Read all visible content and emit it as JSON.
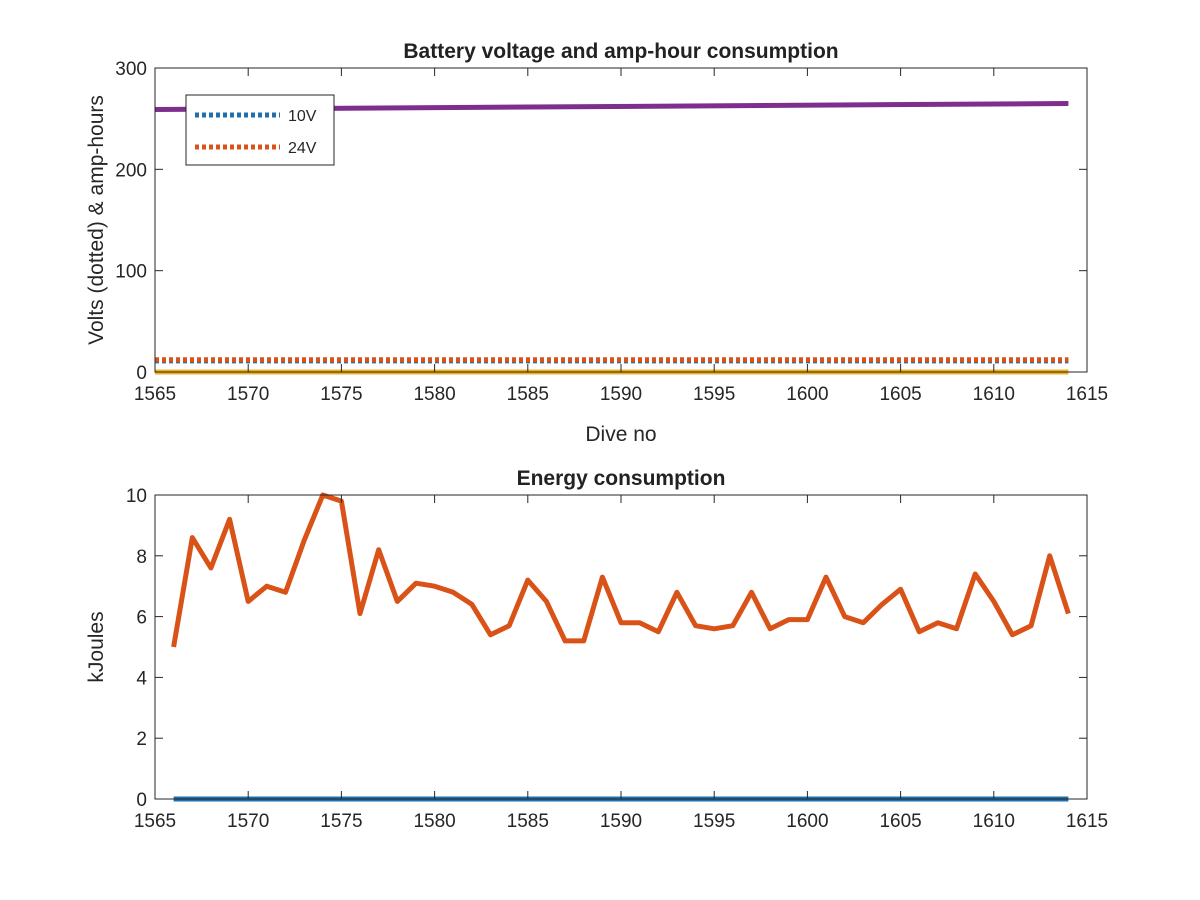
{
  "colors": {
    "blue": "#1f6fad",
    "orange": "#d95319",
    "yellow": "#edb120",
    "purple": "#7e2f8e",
    "axis": "#262626"
  },
  "chart_data": [
    {
      "type": "line",
      "title": "Battery voltage and amp-hour consumption",
      "xlabel": "Dive no",
      "ylabel": "Volts (dotted) & amp-hours",
      "xlim": [
        1565,
        1615
      ],
      "ylim": [
        0,
        300
      ],
      "xticks": [
        1565,
        1570,
        1575,
        1580,
        1585,
        1590,
        1595,
        1600,
        1605,
        1610,
        1615
      ],
      "yticks": [
        0,
        100,
        200,
        300
      ],
      "legend": {
        "position": "top-left",
        "entries": [
          "10V",
          "24V"
        ]
      },
      "series": [
        {
          "name": "10V",
          "color": "#1f6fad",
          "style": "dotted",
          "x": [
            1565,
            1614
          ],
          "y": [
            11,
            11
          ]
        },
        {
          "name": "24V",
          "color": "#d95319",
          "style": "dotted",
          "x": [
            1565,
            1614
          ],
          "y": [
            12,
            12
          ]
        },
        {
          "color": "#edb120",
          "style": "solid",
          "x": [
            1565,
            1614
          ],
          "y": [
            0,
            0
          ]
        },
        {
          "color": "#7e2f8e",
          "style": "solid",
          "x": [
            1565,
            1614
          ],
          "y": [
            259,
            265
          ]
        }
      ]
    },
    {
      "type": "line",
      "title": "Energy consumption",
      "xlabel": "",
      "ylabel": "kJoules",
      "xlim": [
        1565,
        1615
      ],
      "ylim": [
        0,
        10
      ],
      "xticks": [
        1565,
        1570,
        1575,
        1580,
        1585,
        1590,
        1595,
        1600,
        1605,
        1610,
        1615
      ],
      "yticks": [
        0,
        2,
        4,
        6,
        8,
        10
      ],
      "series": [
        {
          "color": "#d95319",
          "style": "solid",
          "x": [
            1566,
            1567,
            1568,
            1569,
            1570,
            1571,
            1572,
            1573,
            1574,
            1575,
            1576,
            1577,
            1578,
            1579,
            1580,
            1581,
            1582,
            1583,
            1584,
            1585,
            1586,
            1587,
            1588,
            1589,
            1590,
            1591,
            1592,
            1593,
            1594,
            1595,
            1596,
            1597,
            1598,
            1599,
            1600,
            1601,
            1602,
            1603,
            1604,
            1605,
            1606,
            1607,
            1608,
            1609,
            1610,
            1611,
            1612,
            1613,
            1614
          ],
          "y": [
            5.0,
            8.6,
            7.6,
            9.2,
            6.5,
            7.0,
            6.8,
            8.5,
            10.0,
            9.8,
            6.1,
            8.2,
            6.5,
            7.1,
            7.0,
            6.8,
            6.4,
            5.4,
            5.7,
            7.2,
            6.5,
            5.2,
            5.2,
            7.3,
            5.8,
            5.8,
            5.5,
            6.8,
            5.7,
            5.6,
            5.7,
            6.8,
            5.6,
            5.9,
            5.9,
            7.3,
            6.0,
            5.8,
            6.4,
            6.9,
            5.5,
            5.8,
            5.6,
            7.4,
            6.5,
            5.4,
            5.7,
            8.0,
            6.1
          ]
        },
        {
          "color": "#1f6fad",
          "style": "solid",
          "x": [
            1566,
            1614
          ],
          "y": [
            0,
            0
          ]
        }
      ]
    }
  ]
}
